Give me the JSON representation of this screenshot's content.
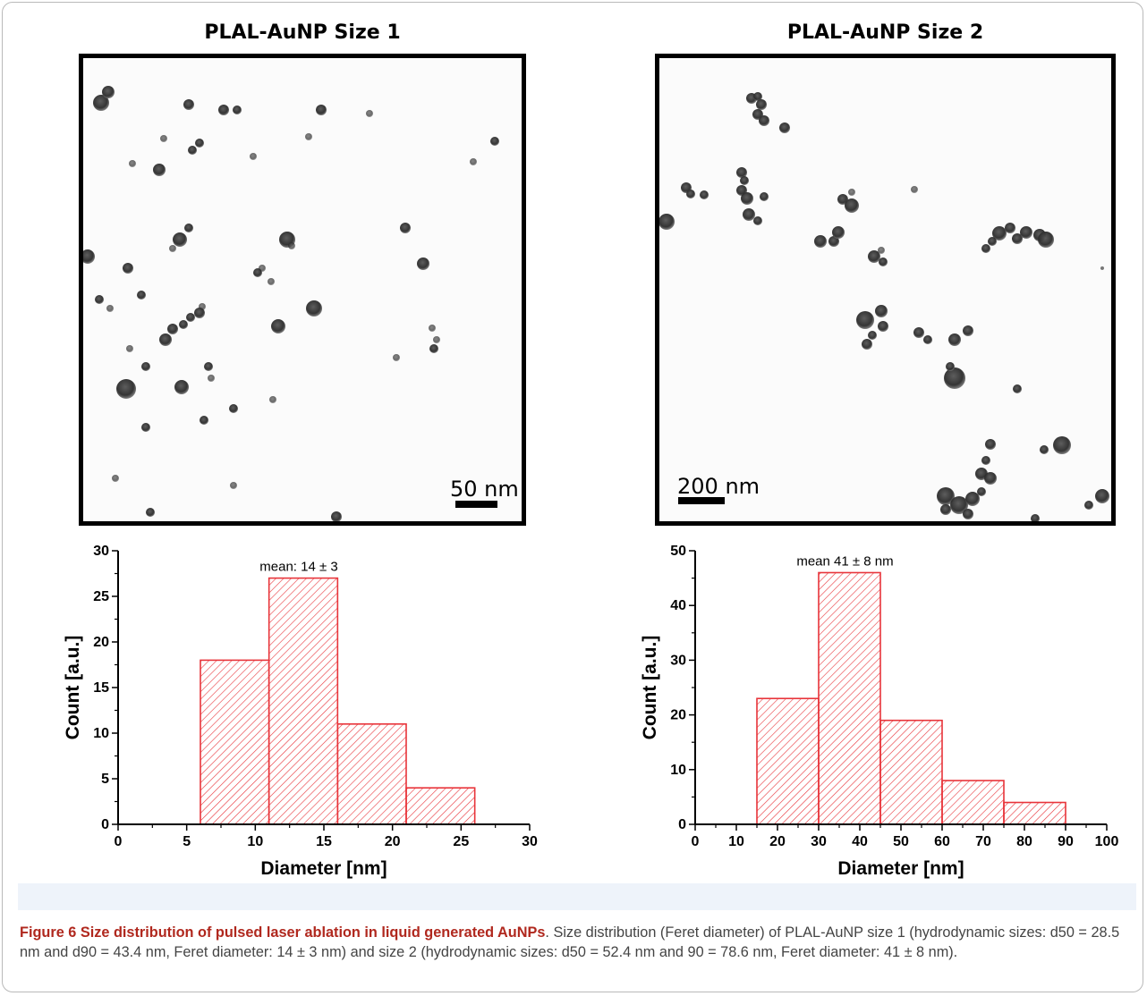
{
  "colors": {
    "bar_edge": "#e8343a",
    "hatch": "#e8343a",
    "caption_title": "#b0281e",
    "caption_text": "#444444"
  },
  "panels": [
    {
      "title": "PLAL-AuNP Size 1",
      "scalebar": "50 nm"
    },
    {
      "title": "PLAL-AuNP Size 2",
      "scalebar": "200 nm"
    }
  ],
  "chart_data": [
    {
      "type": "bar",
      "bins": [
        [
          6,
          11
        ],
        [
          11,
          16
        ],
        [
          16,
          21
        ],
        [
          21,
          26
        ]
      ],
      "values": [
        18,
        27,
        11,
        4
      ],
      "annotation": "mean: 14 ± 3",
      "xlabel": "Diameter [nm]",
      "ylabel": "Count [a.u.]",
      "xlim": [
        0,
        30
      ],
      "ylim": [
        0,
        30
      ],
      "xticks": [
        "0",
        "5",
        "10",
        "15",
        "20",
        "25",
        "30"
      ],
      "yticks": [
        "0",
        "5",
        "10",
        "15",
        "20",
        "25",
        "30"
      ],
      "grid": false
    },
    {
      "type": "bar",
      "bins": [
        [
          15,
          30
        ],
        [
          30,
          45
        ],
        [
          45,
          60
        ],
        [
          60,
          75
        ],
        [
          75,
          90
        ]
      ],
      "values": [
        23,
        46,
        19,
        8,
        4
      ],
      "annotation": "mean 41 ± 8 nm",
      "xlabel": "Diameter [nm]",
      "ylabel": "Count [a.u.]",
      "xlim": [
        0,
        100
      ],
      "ylim": [
        0,
        50
      ],
      "xticks": [
        "0",
        "10",
        "20",
        "30",
        "40",
        "50",
        "60",
        "70",
        "80",
        "90",
        "100"
      ],
      "yticks": [
        "0",
        "10",
        "20",
        "30",
        "40",
        "50"
      ],
      "grid": false
    }
  ],
  "caption": {
    "title": "Figure 6 Size distribution of pulsed laser ablation in liquid generated AuNPs",
    "text": ". Size distribution (Feret diameter) of PLAL-AuNP size 1 (hydrodynamic sizes: d50 = 28.5 nm and d90 = 43.4 nm, Feret diameter: 14 ± 3 nm) and size 2 (hydrodynamic sizes: d50 = 52.4 nm and 90 = 78.6 nm, Feret diameter: 41 ± 8 nm)."
  }
}
